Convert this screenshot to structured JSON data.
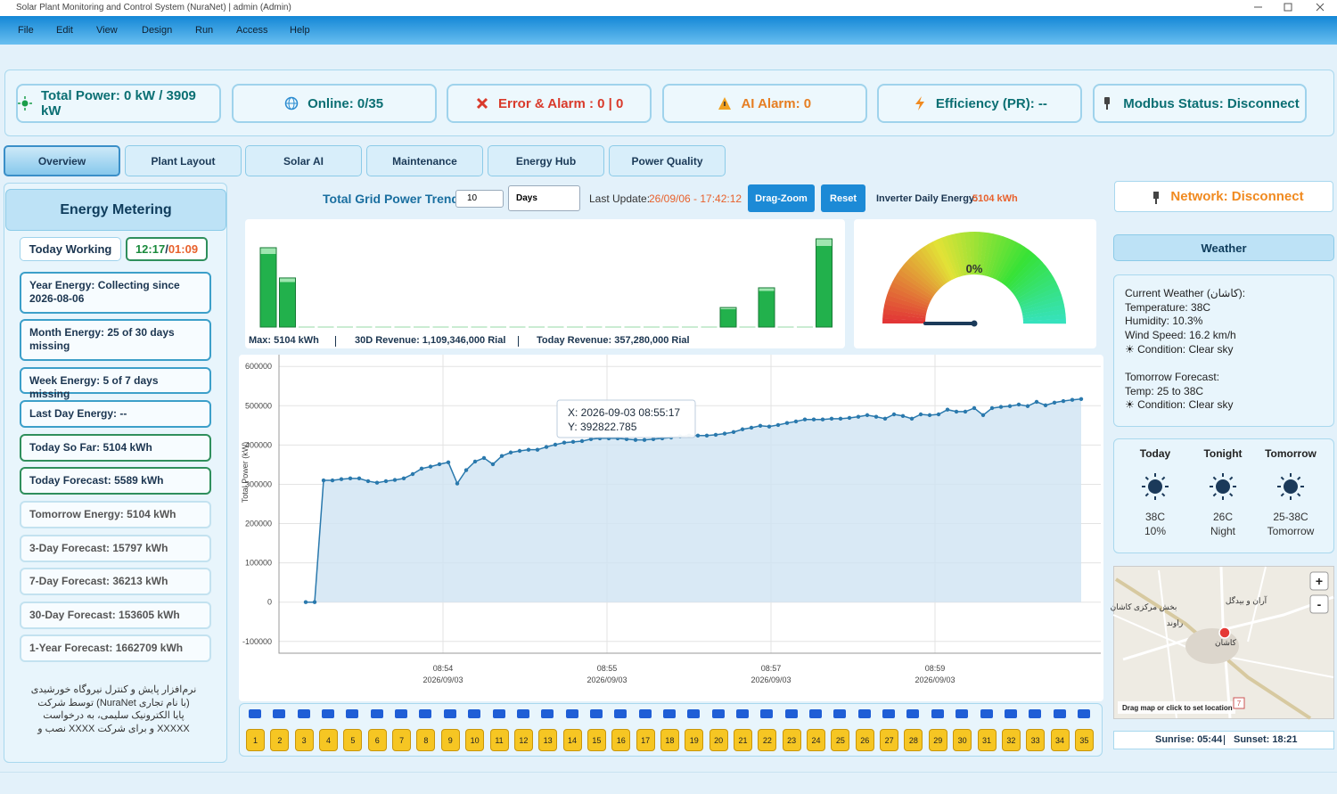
{
  "window": {
    "title": "Solar Plant Monitoring and Control System (NuraNet) | admin (Admin)"
  },
  "menu": [
    "File",
    "Edit",
    "View",
    "Design",
    "Run",
    "Access",
    "Help"
  ],
  "status_cards": [
    {
      "text": "Total Power: 0 kW / 3909 kW",
      "color": "#0b6f73"
    },
    {
      "text": "Online: 0/35",
      "color": "#0b6f73"
    },
    {
      "text": "Error & Alarm : 0 | 0",
      "color": "#d93a2b"
    },
    {
      "text": "AI Alarm: 0",
      "color": "#e67e22"
    },
    {
      "text": "Efficiency (PR): --",
      "color": "#0b6f73"
    },
    {
      "text": "Modbus Status: Disconnect",
      "color": "#0b6f73"
    }
  ],
  "tabs": [
    "Overview",
    "Plant Layout",
    "Solar AI",
    "Maintenance",
    "Energy Hub",
    "Power Quality"
  ],
  "left_panel": {
    "title": "Energy Metering",
    "working_label": "Today Working",
    "elapsed": "12:17",
    "separator": "/",
    "remaining": "01:09",
    "items": [
      "Year Energy: Collecting since 2026-08-06",
      "Month Energy: 25 of 30 days missing",
      "Week Energy: 5 of 7 days missing",
      "Last Day Energy: --",
      "Today So Far: 5104 kWh",
      "Today Forecast: 5589 kWh",
      "Tomorrow Energy: 5104 kWh",
      "3-Day Forecast: 15797 kWh",
      "7-Day Forecast: 36213 kWh",
      "30-Day Forecast: 153605 kWh",
      "1-Year Forecast: 1662709 kWh"
    ],
    "footer": [
      "نرم‌افزار پایش و کنترل نیروگاه خورشیدی",
      "(با نام تجاری NuraNet) توسط شرکت",
      "پایا الکترونیک سلیمی، به درخواست",
      "XXXXX و برای شرکت XXXX نصب و"
    ]
  },
  "trend_header": {
    "title": "Total Grid Power Trend",
    "count": "10",
    "unit": "Days",
    "last_update_label": "Last Update:",
    "last_update": "26/09/06 - 17:42:12",
    "buttons": [
      "Drag-Zoom",
      "Reset"
    ],
    "daily_label": "Inverter Daily Energy:",
    "daily_value": "5104 kWh"
  },
  "bar_footer": [
    "Max: 5104 kWh",
    "30D Revenue: 1,109,346,000 Rial",
    "Today Revenue: 357,280,000 Rial"
  ],
  "chart_data": [
    {
      "type": "bar",
      "color": "#22b14c",
      "values": [
        4590,
        2840,
        0,
        0,
        0,
        0,
        0,
        0,
        0,
        0,
        0,
        0,
        0,
        0,
        0,
        0,
        0,
        0,
        0,
        0,
        0,
        0,
        0,
        0,
        1130,
        0,
        2270,
        0,
        0,
        5104
      ]
    },
    {
      "type": "gauge",
      "value": 0,
      "value_label": "0%",
      "ylim": [
        0,
        100
      ]
    },
    {
      "type": "line",
      "y_label": "Total Power (kW)",
      "color": "#2a79ad",
      "grid": true,
      "values": [
        0,
        0,
        310000,
        310000,
        313000,
        315000,
        315000,
        308000,
        304000,
        308000,
        311000,
        315000,
        326000,
        340000,
        345000,
        351000,
        356000,
        302000,
        336000,
        358000,
        367000,
        351000,
        372000,
        381000,
        385000,
        388000,
        388000,
        395000,
        401000,
        406000,
        408000,
        410000,
        415000,
        417000,
        417000,
        417000,
        415000,
        413000,
        413000,
        415000,
        417000,
        419000,
        422000,
        424000,
        424000,
        424000,
        426000,
        429000,
        433000,
        440000,
        444000,
        449000,
        447000,
        451000,
        456000,
        460000,
        465000,
        465000,
        465000,
        467000,
        467000,
        469000,
        472000,
        476000,
        472000,
        467000,
        478000,
        474000,
        467000,
        478000,
        476000,
        478000,
        490000,
        485000,
        485000,
        494000,
        476000,
        494000,
        497000,
        499000,
        503000,
        499000,
        510000,
        501000,
        508000,
        512000,
        515000,
        517000
      ],
      "ylim": [
        -130000,
        630000
      ],
      "yticks": [
        -100000,
        0,
        100000,
        200000,
        300000,
        400000,
        500000,
        600000
      ],
      "xlim": [
        -3,
        89.2
      ],
      "xticks": [
        {
          "value": 15.4,
          "label": "08:54\n2026/09/03"
        },
        {
          "value": 33.8,
          "label": "08:55\n2026/09/03"
        },
        {
          "value": 52.2,
          "label": "08:57\n2026/09/03"
        },
        {
          "value": 70.6,
          "label": "08:59\n2026/09/03"
        }
      ],
      "tooltip": [
        "X: 2026-09-03 08:55:17",
        "Y: 392822.785"
      ]
    }
  ],
  "inverters": [
    1,
    2,
    3,
    4,
    5,
    6,
    7,
    8,
    9,
    10,
    11,
    12,
    13,
    14,
    15,
    16,
    17,
    18,
    19,
    20,
    21,
    22,
    23,
    24,
    25,
    26,
    27,
    28,
    29,
    30,
    31,
    32,
    33,
    34,
    35
  ],
  "right_panel": {
    "network": "Network: Disconnect",
    "weather_title": "Weather",
    "current": [
      "Current Weather (کاشان):",
      "Temperature: 38C",
      "Humidity: 10.3%",
      "Wind Speed: 16.2 km/h",
      "☀ Condition: Clear sky"
    ],
    "tomorrow": [
      "Tomorrow Forecast:",
      "Temp: 25 to 38C",
      "☀ Condition: Clear sky"
    ],
    "forecast": [
      {
        "label": "Today",
        "temp": "38C",
        "detail": "10%"
      },
      {
        "label": "Tonight",
        "temp": "26C",
        "detail": "Night"
      },
      {
        "label": "Tomorrow",
        "temp": "25-38C",
        "detail": "Tomorrow"
      }
    ],
    "map": {
      "places": [
        "آران و بیدگل",
        "بخش مرکزی کاشان",
        "راوند",
        "کاشان"
      ],
      "hint": "Drag map or click to set location",
      "zoom_in": "+",
      "zoom_out": "-",
      "road": "7"
    },
    "sunrise": "Sunrise: 05:44",
    "sunset": "Sunset: 18:21"
  }
}
